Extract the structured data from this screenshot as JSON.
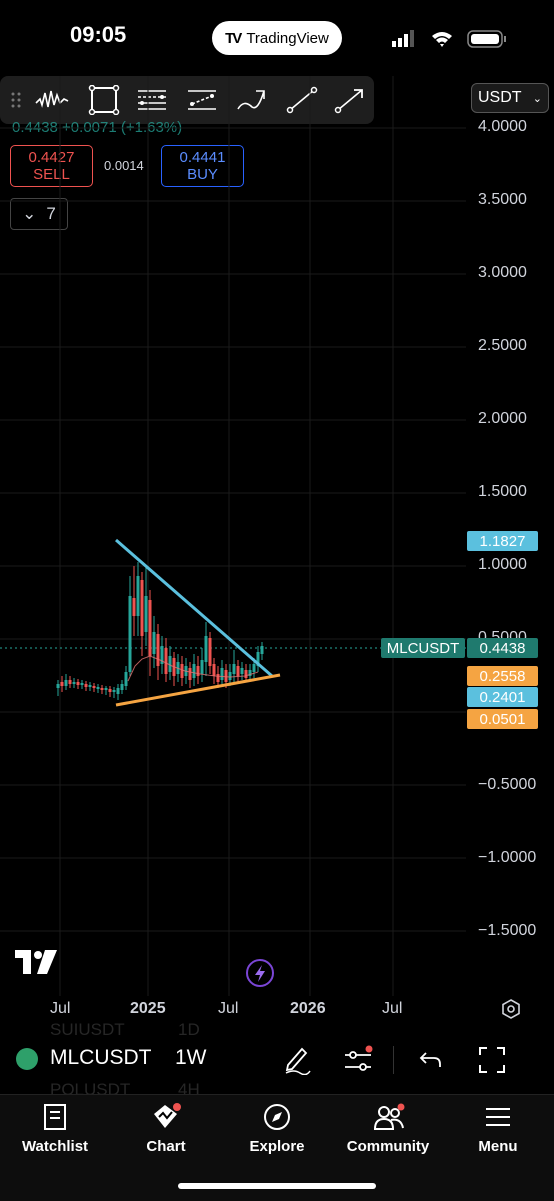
{
  "status_bar": {
    "time": "09:05",
    "app_pill": "TradingView"
  },
  "header": {
    "price_change": "0.4438 +0.0071 (+1.63%)",
    "sell_price": "0.4427",
    "sell_label": "SELL",
    "spread": "0.0014",
    "buy_price": "0.4441",
    "buy_label": "BUY",
    "indicator_count": "7",
    "currency": "USDT"
  },
  "toolbar": {
    "tools": [
      "drag-handle-icon",
      "pattern-icon",
      "rectangle-icon",
      "fib-retracement-icon",
      "parallel-channel-icon",
      "brush-icon",
      "trend-line-icon",
      "arrow-line-icon"
    ]
  },
  "price_axis": {
    "ticks": [
      "4.0000",
      "3.5000",
      "3.0000",
      "2.5000",
      "2.0000",
      "1.5000",
      "1.0000",
      "0.5000",
      "−0.5000",
      "−1.0000",
      "−1.5000"
    ],
    "labels": [
      {
        "text": "1.1827",
        "color": "#5bc0de"
      },
      {
        "text": "0.4438",
        "color": "#1f7a6e"
      },
      {
        "text": "0.2558",
        "color": "#f5a442"
      },
      {
        "text": "0.2401",
        "color": "#5bc0de"
      },
      {
        "text": "0.0501",
        "color": "#f5a442"
      }
    ],
    "symbol_label": "MLCUSDT"
  },
  "time_axis": {
    "ticks": [
      "Jul",
      "2025",
      "Jul",
      "2026",
      "Jul"
    ]
  },
  "symbol_bar": {
    "symbol": "MLCUSDT",
    "interval": "1W",
    "ghost_top": "SUIUSDT",
    "ghost_top_tf": "1D",
    "ghost_bottom": "POLUSDT",
    "ghost_bottom_tf": "4H"
  },
  "tabs": [
    {
      "label": "Watchlist",
      "icon": "book-icon"
    },
    {
      "label": "Chart",
      "icon": "chart-icon"
    },
    {
      "label": "Explore",
      "icon": "compass-icon"
    },
    {
      "label": "Community",
      "icon": "community-icon"
    },
    {
      "label": "Menu",
      "icon": "menu-icon"
    }
  ],
  "colors": {
    "accent_up": "#26a69a",
    "accent_down": "#ef5350",
    "trendline_top": "#5bc0de",
    "trendline_bottom": "#f5a442",
    "buy": "#2962ff"
  }
}
